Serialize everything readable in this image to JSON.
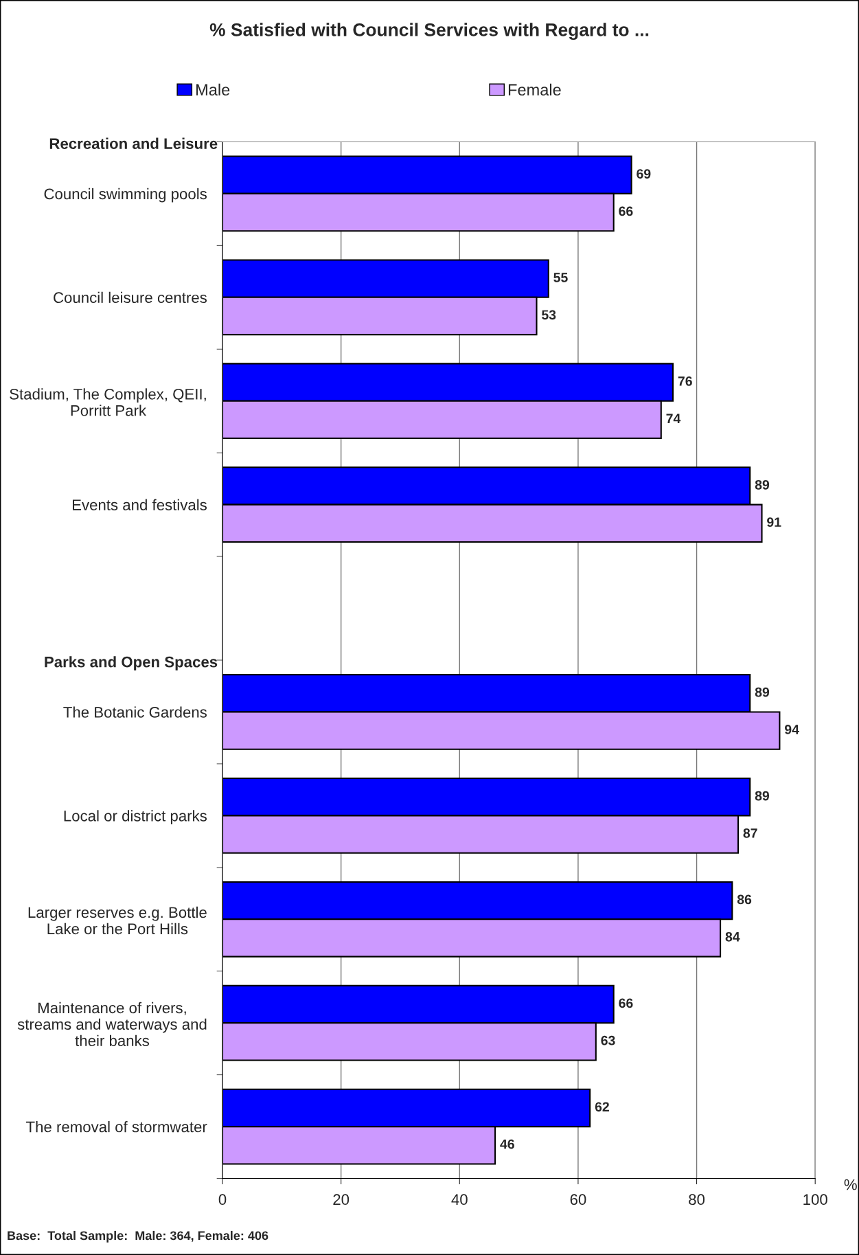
{
  "chart_data": {
    "type": "bar",
    "orientation": "horizontal",
    "title": "% Satisfied with Council Services with Regard to ...",
    "xlabel": "%",
    "categories": [
      "Council swimming pools",
      "Council leisure centres",
      "Stadium, The Complex, QEII, Porritt Park",
      "Events and festivals",
      null,
      "The Botanic Gardens",
      "Local or district parks",
      "Larger reserves e.g. Bottle Lake or the Port Hills",
      "Maintenance of rivers, streams and waterways and their banks",
      "The removal of stormwater"
    ],
    "series": [
      {
        "name": "Male",
        "color": "#0000ff",
        "values": [
          69,
          55,
          76,
          89,
          null,
          89,
          89,
          86,
          66,
          62
        ]
      },
      {
        "name": "Female",
        "color": "#cc99ff",
        "values": [
          66,
          53,
          74,
          91,
          null,
          94,
          87,
          84,
          63,
          46
        ]
      }
    ],
    "xlim": [
      0,
      100
    ],
    "xticks": [
      0,
      20,
      40,
      60,
      80,
      100
    ],
    "grid": "x",
    "legend": "top",
    "data_labels": true,
    "annotations": [
      "Recreation and Leisure",
      "Parks and Open Spaces",
      "Base:  Total Sample:  Male: 364, Female: 406"
    ]
  }
}
